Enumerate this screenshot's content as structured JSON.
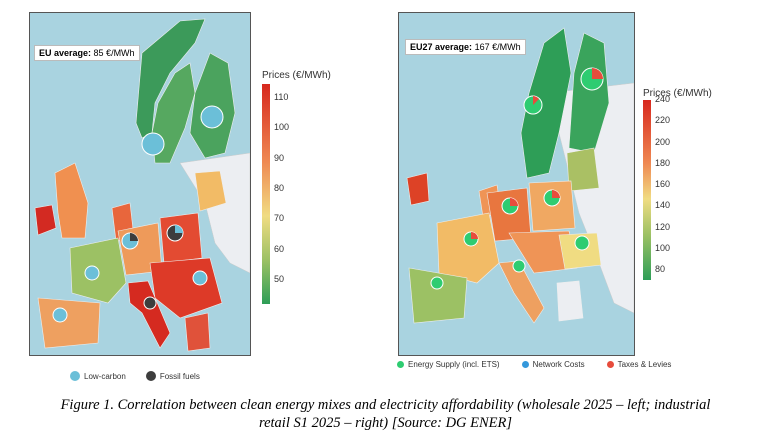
{
  "left_map": {
    "avg_label": "EU average:",
    "avg_value": "85 €/MWh",
    "colorbar_title": "Prices (€/MWh)",
    "colorbar_ticks": [
      "110",
      "100",
      "90",
      "80",
      "70",
      "60",
      "50"
    ],
    "legend": [
      {
        "label": "Low-carbon",
        "color": "#6bbfd8"
      },
      {
        "label": "Fossil fuels",
        "color": "#3d3d3d"
      }
    ]
  },
  "right_map": {
    "avg_label": "EU27 average:",
    "avg_value": "167 €/MWh",
    "colorbar_title": "Prices (€/MWh)",
    "colorbar_ticks": [
      "240",
      "220",
      "200",
      "180",
      "160",
      "140",
      "120",
      "100",
      "80"
    ],
    "legend": [
      {
        "label": "Energy Supply (incl. ETS)",
        "color": "#2ecc71"
      },
      {
        "label": "Network Costs",
        "color": "#3498db"
      },
      {
        "label": "Taxes & Levies",
        "color": "#e74c3c"
      }
    ]
  },
  "colors": {
    "sea": "#a9d3e0",
    "non_eu_land": "#eceef2",
    "scale_low": "#2e9e57",
    "scale_mid": "#f0dc82",
    "scale_high": "#d7281e"
  },
  "caption": {
    "line1": "Figure 1. Correlation between clean energy mixes and electricity affordability (wholesale 2025 – left; industrial",
    "line2": "retail S1 2025 – right) [Source: DG ENER]"
  }
}
